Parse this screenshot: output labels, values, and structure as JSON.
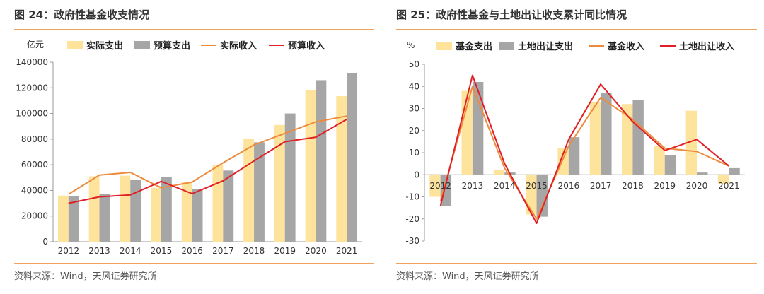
{
  "figures": [
    {
      "title": "图 24：政府性基金收支情况",
      "source": "资料来源：Wind，天风证券研究所"
    },
    {
      "title": "图 25：政府性基金与土地出让收支累计同比情况",
      "source": "资料来源：Wind，天风证券研究所"
    }
  ],
  "colors": {
    "bar_light": "#fde39b",
    "bar_gray": "#a6a6a6",
    "line_orange": "#ee8a3c",
    "line_red": "#e01f26",
    "rule": "#f0a35e"
  },
  "chart_data": [
    {
      "type": "bar+line",
      "unit_label": "亿元",
      "categories": [
        "2012",
        "2013",
        "2014",
        "2015",
        "2016",
        "2017",
        "2018",
        "2019",
        "2020",
        "2021"
      ],
      "yticks": [
        "0",
        "20000",
        "40000",
        "60000",
        "80000",
        "100000",
        "120000",
        "140000"
      ],
      "ylim": [
        0,
        140000
      ],
      "grid": false,
      "legend_position": "top",
      "series": [
        {
          "name": "实际支出",
          "kind": "bar",
          "color": "#fde39b",
          "values": [
            36000,
            51000,
            51500,
            42000,
            46500,
            60000,
            80500,
            91000,
            118000,
            113500
          ]
        },
        {
          "name": "预算支出",
          "kind": "bar",
          "color": "#a6a6a6",
          "values": [
            35500,
            37500,
            48500,
            50500,
            41000,
            55500,
            77500,
            100000,
            126000,
            131500
          ]
        },
        {
          "name": "实际收入",
          "kind": "line",
          "color": "#ee8a3c",
          "values": [
            37000,
            52000,
            54000,
            42000,
            46500,
            61500,
            75500,
            84500,
            93500,
            98000
          ]
        },
        {
          "name": "预算收入",
          "kind": "line",
          "color": "#e01f26",
          "values": [
            30000,
            35000,
            36500,
            47000,
            37500,
            47500,
            63000,
            78000,
            81500,
            95500
          ]
        }
      ]
    },
    {
      "type": "bar+line",
      "unit_label": "%",
      "categories": [
        "2012",
        "2013",
        "2014",
        "2015",
        "2016",
        "2017",
        "2018",
        "2019",
        "2020",
        "2021"
      ],
      "yticks": [
        "-30",
        "-20",
        "-10",
        "0",
        "10",
        "20",
        "30",
        "40",
        "50"
      ],
      "ylim": [
        -30,
        50
      ],
      "grid": false,
      "legend_position": "top",
      "series": [
        {
          "name": "基金支出",
          "kind": "bar",
          "color": "#fde39b",
          "values": [
            -10,
            38,
            2,
            -18,
            12,
            33,
            32,
            13,
            29,
            -4
          ]
        },
        {
          "name": "土地出让支出",
          "kind": "bar",
          "color": "#a6a6a6",
          "values": [
            -14,
            42,
            1,
            -19,
            17,
            37,
            34,
            9,
            1,
            3
          ]
        },
        {
          "name": "基金收入",
          "kind": "line",
          "color": "#ee8a3c",
          "values": [
            -12,
            40,
            3,
            -20,
            13,
            35,
            25,
            12,
            10.5,
            4
          ]
        },
        {
          "name": "土地出让收入",
          "kind": "line",
          "color": "#e01f26",
          "values": [
            -14,
            45,
            5,
            -22,
            16,
            41,
            24,
            11,
            16,
            4
          ]
        }
      ]
    }
  ]
}
